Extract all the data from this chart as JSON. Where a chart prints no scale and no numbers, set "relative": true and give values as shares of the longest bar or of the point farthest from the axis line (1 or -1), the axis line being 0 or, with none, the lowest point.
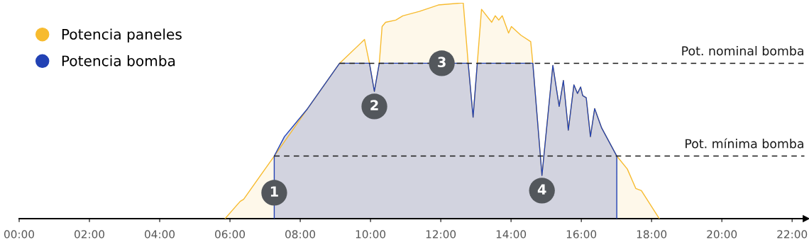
{
  "chart_data": {
    "type": "area",
    "relative": true,
    "xlim": [
      0,
      22.4
    ],
    "xticks": [
      {
        "value": 0,
        "label": "00:00"
      },
      {
        "value": 2,
        "label": "02:00"
      },
      {
        "value": 4,
        "label": "04:00"
      },
      {
        "value": 6,
        "label": "06:00"
      },
      {
        "value": 8,
        "label": "08:00"
      },
      {
        "value": 10,
        "label": "10:00"
      },
      {
        "value": 12,
        "label": "12:00"
      },
      {
        "value": 14,
        "label": "14:00"
      },
      {
        "value": 16,
        "label": "16:00"
      },
      {
        "value": 18,
        "label": "18:00"
      },
      {
        "value": 20,
        "label": "20:00"
      },
      {
        "value": 22,
        "label": "22:00"
      }
    ],
    "tick_labels": "x",
    "grid": false,
    "legend": "top left",
    "series": [
      {
        "name": "Potencia paneles",
        "color": "#f7bb2f",
        "x": [
          5.86,
          6.29,
          6.39,
          7.26,
          9.12,
          9.83,
          9.97,
          10.11,
          10.25,
          10.33,
          10.43,
          10.72,
          10.92,
          11.39,
          11.93,
          12.64,
          12.78,
          12.92,
          13.04,
          13.16,
          13.45,
          13.55,
          13.65,
          13.75,
          13.93,
          14.01,
          14.28,
          14.56,
          14.62,
          14.88,
          15.19,
          15.37,
          15.49,
          15.63,
          15.79,
          15.89,
          15.98,
          16.04,
          16.14,
          16.26,
          16.38,
          16.58,
          17.01,
          17.31,
          17.55,
          17.71,
          18.22
        ],
        "values": [
          0,
          0.08,
          0.09,
          0.29,
          0.72,
          0.83,
          0.72,
          0.59,
          0.72,
          0.89,
          0.91,
          0.92,
          0.94,
          0.96,
          0.99,
          1.0,
          0.72,
          0.47,
          0.72,
          0.97,
          0.91,
          0.94,
          0.92,
          0.94,
          0.86,
          0.89,
          0.85,
          0.82,
          0.72,
          0.2,
          0.71,
          0.52,
          0.64,
          0.41,
          0.62,
          0.58,
          0.61,
          0.57,
          0.56,
          0.38,
          0.51,
          0.42,
          0.29,
          0.23,
          0.14,
          0.13,
          0
        ]
      },
      {
        "name": "Potencia bomba",
        "color": "#2242b4",
        "x": [
          7.26,
          7.26,
          7.55,
          8.21,
          9.12,
          9.97,
          10.11,
          10.25,
          12.78,
          12.92,
          13.04,
          14.62,
          14.88,
          15.19,
          15.37,
          15.49,
          15.63,
          15.79,
          15.89,
          15.98,
          16.04,
          16.14,
          16.26,
          16.38,
          16.58,
          17.01,
          17.01
        ],
        "values": [
          0,
          0.29,
          0.38,
          0.51,
          0.72,
          0.72,
          0.59,
          0.72,
          0.72,
          0.47,
          0.72,
          0.72,
          0.2,
          0.71,
          0.52,
          0.64,
          0.41,
          0.62,
          0.58,
          0.61,
          0.57,
          0.56,
          0.38,
          0.51,
          0.42,
          0.29,
          0
        ]
      }
    ],
    "ref_lines": [
      {
        "axis": "y",
        "value": 0.72,
        "label": "Pot. nominal bomba",
        "color": "#1a1a1a",
        "line_style": "dashed"
      },
      {
        "axis": "y",
        "value": 0.29,
        "label": "Pot. mínima bomba",
        "color": "#1a1a1a",
        "line_style": "dashed"
      }
    ],
    "annotations": [
      {
        "text": "1",
        "x": 7.26,
        "y": 0.12
      },
      {
        "text": "2",
        "x": 10.11,
        "y": 0.52
      },
      {
        "text": "3",
        "x": 12.03,
        "y": 0.72
      },
      {
        "text": "4",
        "x": 14.88,
        "y": 0.13
      }
    ]
  }
}
